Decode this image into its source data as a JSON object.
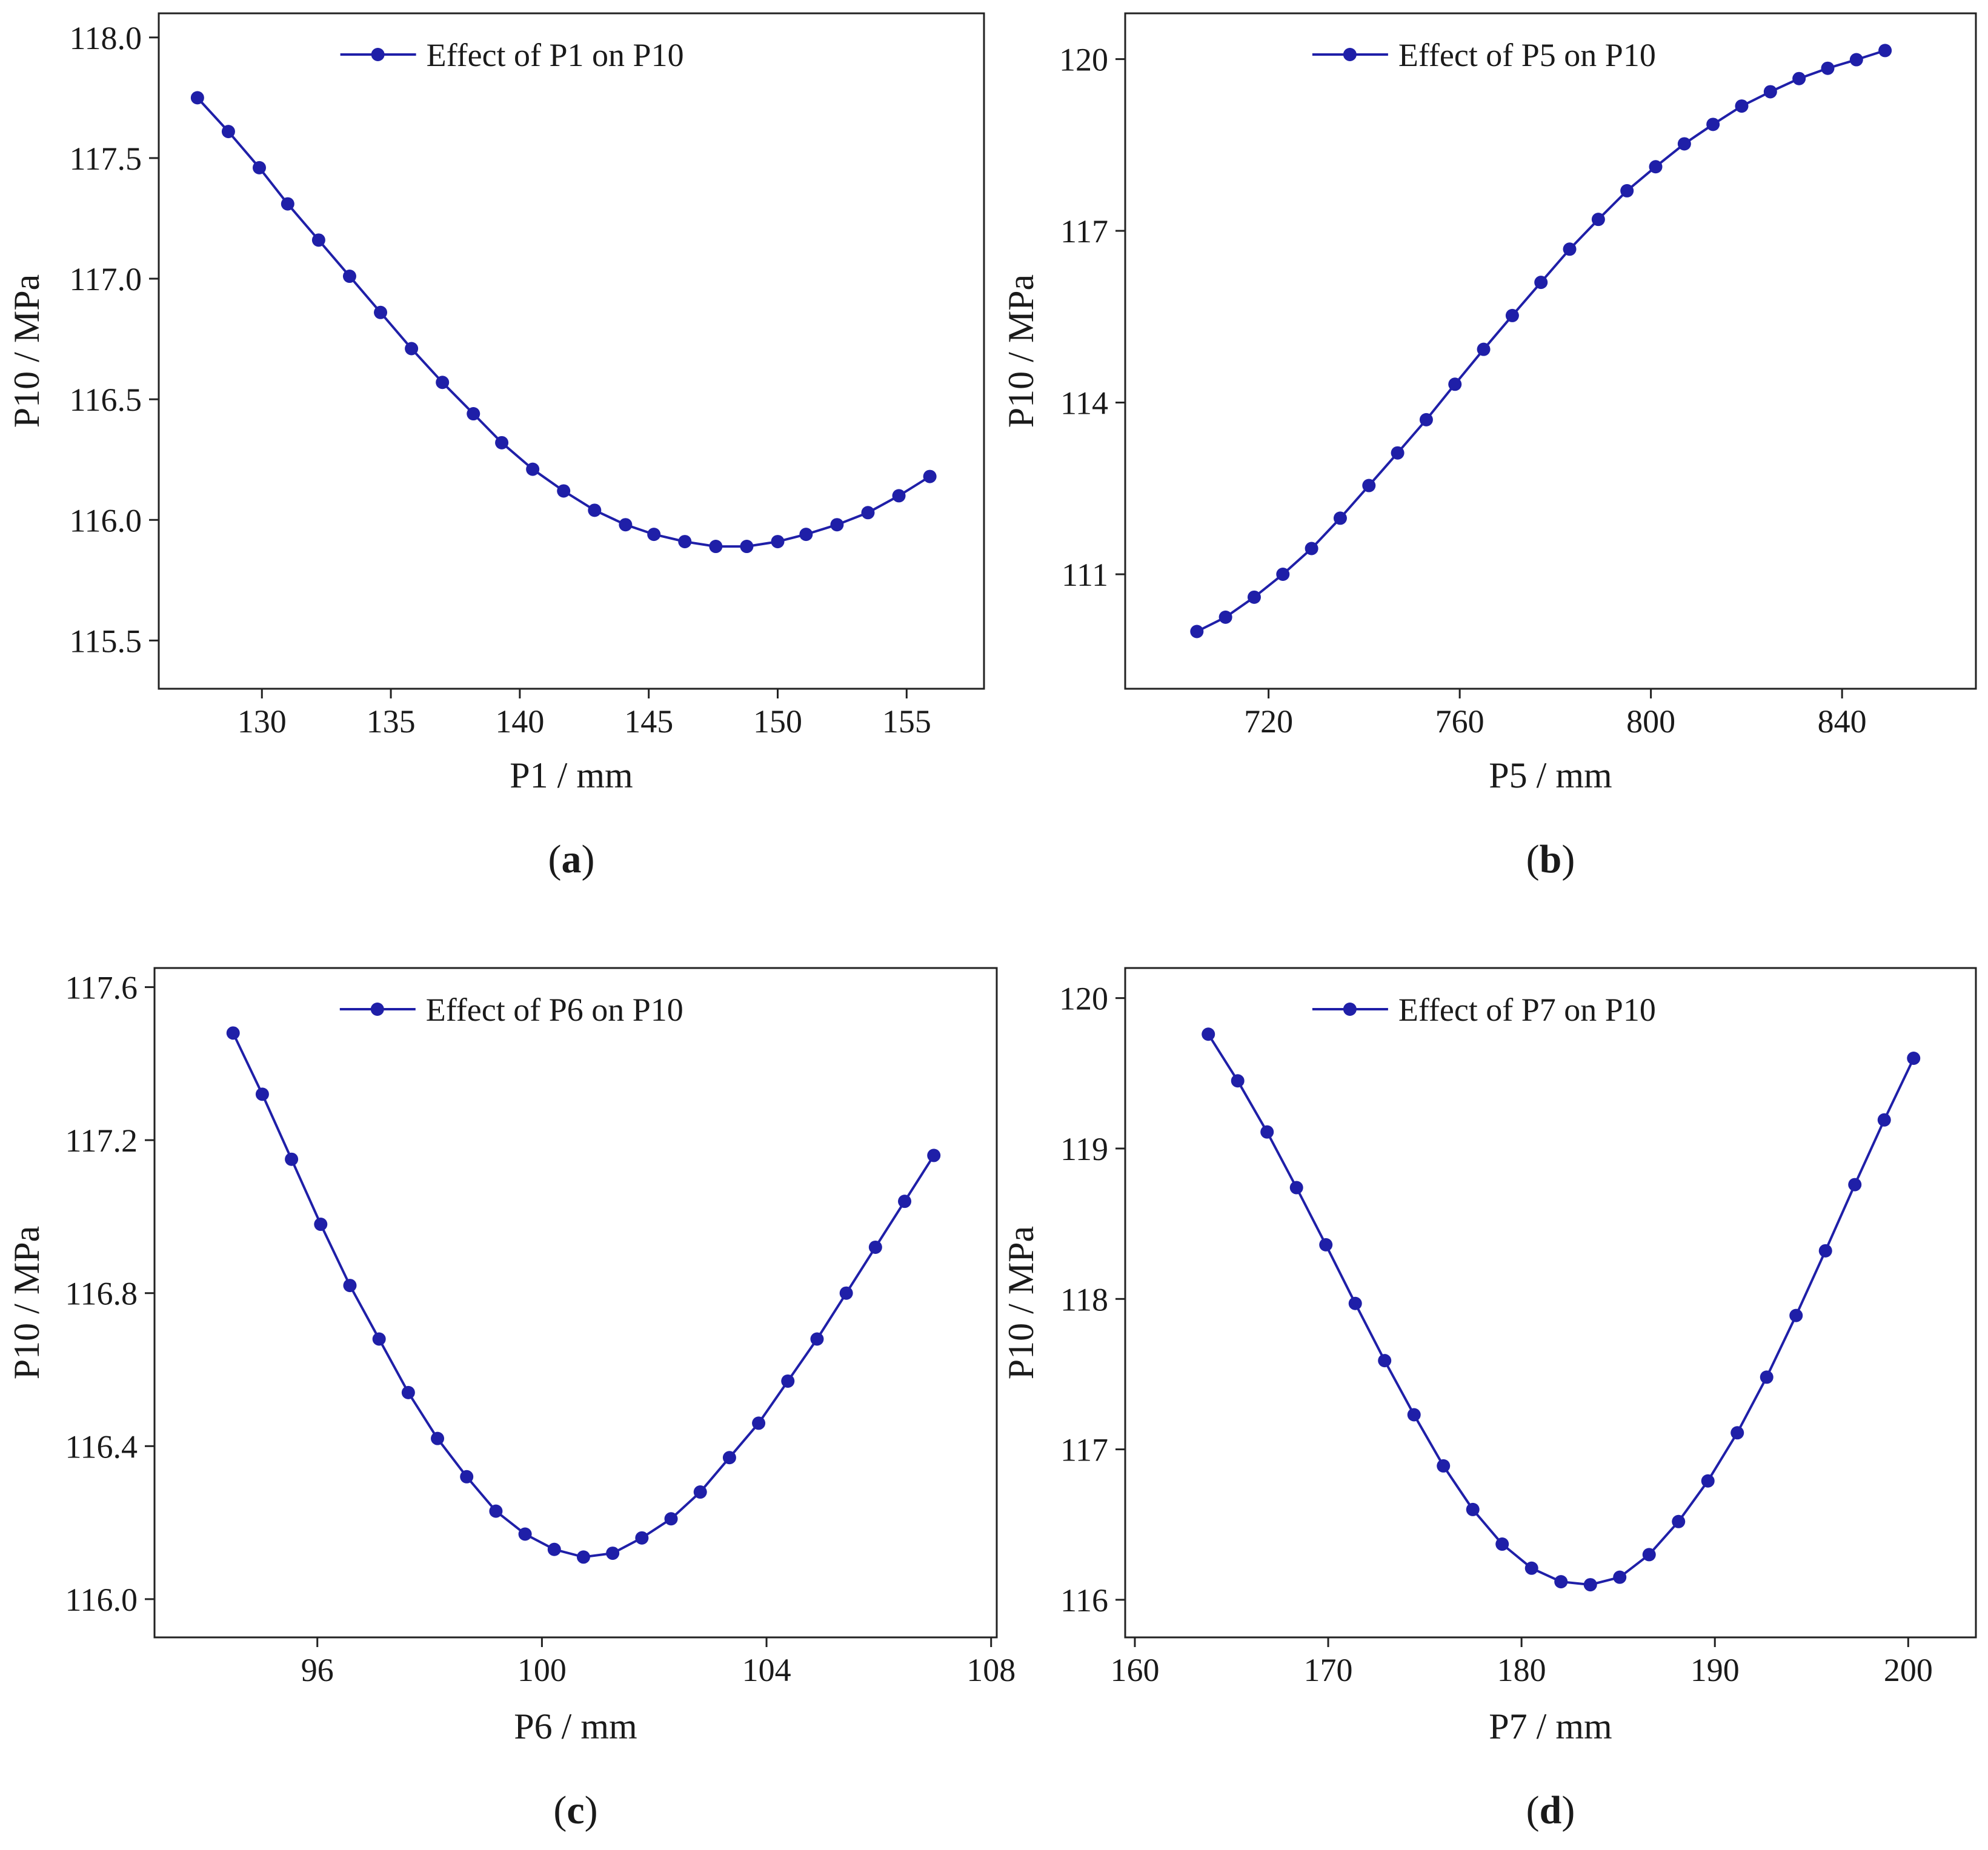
{
  "figure": {
    "series_color": "#1f1fa8",
    "axis_color": "#222222"
  },
  "chart_data": [
    {
      "id": "a",
      "type": "line",
      "panel_label": "a",
      "legend": "Effect of  P1 on P10",
      "legend_position": "top-center",
      "xlabel": "P1 / mm",
      "ylabel": "P10 / MPa",
      "xlim": [
        126,
        158
      ],
      "ylim": [
        115.3,
        118.1
      ],
      "xticks": [
        130,
        135,
        140,
        145,
        150,
        155
      ],
      "yticks": [
        115.5,
        116.0,
        116.5,
        117.0,
        117.5,
        118.0
      ],
      "xtick_labels": [
        "130",
        "135",
        "140",
        "145",
        "150",
        "155"
      ],
      "ytick_labels": [
        "115.5",
        "116.0",
        "116.5",
        "117.0",
        "117.5",
        "118.0"
      ],
      "x": [
        127.5,
        128.7,
        129.9,
        131.0,
        132.2,
        133.4,
        134.6,
        135.8,
        137.0,
        138.2,
        139.3,
        140.5,
        141.7,
        142.9,
        144.1,
        145.2,
        146.4,
        147.6,
        148.8,
        150.0,
        151.1,
        152.3,
        153.5,
        154.7,
        155.9
      ],
      "y": [
        117.75,
        117.61,
        117.46,
        117.31,
        117.16,
        117.01,
        116.86,
        116.71,
        116.57,
        116.44,
        116.32,
        116.21,
        116.12,
        116.04,
        115.98,
        115.94,
        115.91,
        115.89,
        115.89,
        115.91,
        115.94,
        115.98,
        116.03,
        116.1,
        116.18
      ]
    },
    {
      "id": "b",
      "type": "line",
      "panel_label": "b",
      "legend": "Effect of  P5 on P10",
      "legend_position": "top-center",
      "xlabel": "P5 / mm",
      "ylabel": "P10 / MPa",
      "xlim": [
        690,
        868
      ],
      "ylim": [
        109.0,
        120.8
      ],
      "xticks": [
        720,
        760,
        800,
        840
      ],
      "yticks": [
        111,
        114,
        117,
        120
      ],
      "xtick_labels": [
        "720",
        "760",
        "800",
        "840"
      ],
      "ytick_labels": [
        "111",
        "114",
        "117",
        "120"
      ],
      "x": [
        705,
        711,
        717,
        723,
        729,
        735,
        741,
        747,
        753,
        759,
        765,
        771,
        777,
        783,
        789,
        795,
        801,
        807,
        813,
        819,
        825,
        831,
        837,
        843,
        849
      ],
      "y": [
        110.0,
        110.25,
        110.6,
        111.0,
        111.45,
        111.98,
        112.55,
        113.12,
        113.7,
        114.32,
        114.93,
        115.52,
        116.1,
        116.68,
        117.2,
        117.7,
        118.12,
        118.52,
        118.86,
        119.18,
        119.43,
        119.66,
        119.84,
        119.99,
        120.15
      ]
    },
    {
      "id": "c",
      "type": "line",
      "panel_label": "c",
      "legend": "Effect of  P6 on P10",
      "legend_position": "top-center",
      "xlabel": "P6 / mm",
      "ylabel": "P10 / MPa",
      "xlim": [
        93.1,
        108.1
      ],
      "ylim": [
        115.9,
        117.65
      ],
      "xticks": [
        96,
        100,
        104,
        108
      ],
      "yticks": [
        116.0,
        116.4,
        116.8,
        117.2,
        117.6
      ],
      "xtick_labels": [
        "96",
        "100",
        "104",
        "108"
      ],
      "ytick_labels": [
        "116.0",
        "116.4",
        "116.8",
        "117.2",
        "117.6"
      ],
      "x": [
        94.5,
        95.02,
        95.54,
        96.06,
        96.58,
        97.1,
        97.62,
        98.14,
        98.66,
        99.18,
        99.7,
        100.22,
        100.74,
        101.26,
        101.78,
        102.3,
        102.82,
        103.34,
        103.86,
        104.38,
        104.9,
        105.42,
        105.94,
        106.46,
        106.98
      ],
      "y": [
        117.48,
        117.32,
        117.15,
        116.98,
        116.82,
        116.68,
        116.54,
        116.42,
        116.32,
        116.23,
        116.17,
        116.13,
        116.11,
        116.12,
        116.16,
        116.21,
        116.28,
        116.37,
        116.46,
        116.57,
        116.68,
        116.8,
        116.92,
        117.04,
        117.16
      ]
    },
    {
      "id": "d",
      "type": "line",
      "panel_label": "d",
      "legend": "Effect of  P7 on P10",
      "legend_position": "top-center",
      "xlabel": "P7 / mm",
      "ylabel": "P10 / MPa",
      "xlim": [
        159.5,
        203.5
      ],
      "ylim": [
        115.75,
        120.2
      ],
      "xticks": [
        160,
        170,
        180,
        190,
        200
      ],
      "yticks": [
        116,
        117,
        118,
        119,
        120
      ],
      "xtick_labels": [
        "160",
        "170",
        "180",
        "190",
        "200"
      ],
      "ytick_labels": [
        "116",
        "117",
        "118",
        "119",
        "120"
      ],
      "x": [
        163.8,
        165.32,
        166.84,
        168.36,
        169.88,
        171.4,
        172.92,
        174.44,
        175.96,
        177.48,
        179.0,
        180.52,
        182.04,
        183.56,
        185.08,
        186.6,
        188.12,
        189.64,
        191.16,
        192.68,
        194.2,
        195.72,
        197.24,
        198.76,
        200.28
      ],
      "y": [
        119.76,
        119.45,
        119.11,
        118.74,
        118.36,
        117.97,
        117.59,
        117.23,
        116.89,
        116.6,
        116.37,
        116.21,
        116.12,
        116.1,
        116.15,
        116.3,
        116.52,
        116.79,
        117.11,
        117.48,
        117.89,
        118.32,
        118.76,
        119.19,
        119.6
      ]
    }
  ]
}
